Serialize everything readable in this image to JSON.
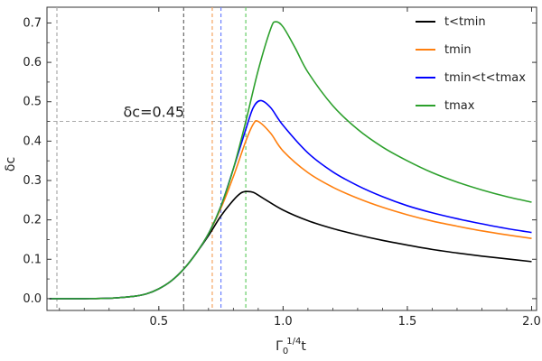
{
  "chart_data": {
    "type": "line",
    "title": "",
    "xlabel_main": "Γ",
    "xlabel_sub": "0",
    "xlabel_sup": "1/4",
    "xlabel_tail": "t",
    "ylabel": "δc",
    "xlim": [
      0.05,
      2.02
    ],
    "ylim": [
      -0.03,
      0.74
    ],
    "x_ticks": [
      0.5,
      1.0,
      1.5,
      2.0
    ],
    "x_tick_labels": [
      "0.5",
      "1.0",
      "1.5",
      "2.0"
    ],
    "y_ticks": [
      0.0,
      0.1,
      0.2,
      0.3,
      0.4,
      0.5,
      0.6,
      0.7
    ],
    "y_tick_labels": [
      "0.0",
      "0.1",
      "0.2",
      "0.3",
      "0.4",
      "0.5",
      "0.6",
      "0.7"
    ],
    "grid": false,
    "legend_position": "top-right",
    "annotation": {
      "text": "δc=0.45",
      "x": 0.48,
      "y": 0.45
    },
    "threshold_line": {
      "y": 0.45,
      "color": "#aaaaaa"
    },
    "vertical_lines": [
      {
        "x": 0.09,
        "color": "#aaaaaa"
      },
      {
        "x": 0.6,
        "color": "#666666"
      },
      {
        "x": 0.715,
        "color": "#f4a460"
      },
      {
        "x": 0.75,
        "color": "#6b7fff"
      },
      {
        "x": 0.85,
        "color": "#66cc66"
      }
    ],
    "series": [
      {
        "name": "t<tmin",
        "color": "#000000",
        "x": [
          0.06,
          0.2,
          0.3,
          0.4,
          0.45,
          0.5,
          0.55,
          0.6,
          0.65,
          0.7,
          0.75,
          0.8,
          0.83,
          0.85,
          0.88,
          0.92,
          1.0,
          1.1,
          1.2,
          1.3,
          1.4,
          1.5,
          1.6,
          1.7,
          1.8,
          1.9,
          2.0
        ],
        "y": [
          0.0,
          0.0,
          0.001,
          0.006,
          0.012,
          0.025,
          0.045,
          0.075,
          0.115,
          0.16,
          0.21,
          0.25,
          0.268,
          0.272,
          0.27,
          0.255,
          0.225,
          0.198,
          0.178,
          0.162,
          0.148,
          0.136,
          0.125,
          0.116,
          0.108,
          0.101,
          0.094
        ]
      },
      {
        "name": "tmin",
        "color": "#ff7f0e",
        "x": [
          0.06,
          0.2,
          0.3,
          0.4,
          0.45,
          0.5,
          0.55,
          0.6,
          0.65,
          0.7,
          0.75,
          0.8,
          0.85,
          0.88,
          0.9,
          0.95,
          1.0,
          1.1,
          1.2,
          1.3,
          1.4,
          1.5,
          1.6,
          1.7,
          1.8,
          1.9,
          2.0
        ],
        "y": [
          0.0,
          0.0,
          0.001,
          0.006,
          0.012,
          0.025,
          0.045,
          0.075,
          0.115,
          0.165,
          0.23,
          0.31,
          0.4,
          0.443,
          0.45,
          0.42,
          0.375,
          0.32,
          0.283,
          0.255,
          0.232,
          0.213,
          0.197,
          0.184,
          0.172,
          0.162,
          0.153
        ]
      },
      {
        "name": "tmin<t<tmax",
        "color": "#0000ff",
        "x": [
          0.06,
          0.2,
          0.3,
          0.4,
          0.45,
          0.5,
          0.55,
          0.6,
          0.65,
          0.7,
          0.75,
          0.8,
          0.85,
          0.88,
          0.91,
          0.95,
          1.0,
          1.1,
          1.2,
          1.3,
          1.4,
          1.5,
          1.6,
          1.7,
          1.8,
          1.9,
          2.0
        ],
        "y": [
          0.0,
          0.0,
          0.001,
          0.006,
          0.012,
          0.025,
          0.045,
          0.075,
          0.115,
          0.165,
          0.235,
          0.33,
          0.43,
          0.485,
          0.503,
          0.485,
          0.44,
          0.37,
          0.322,
          0.287,
          0.259,
          0.236,
          0.218,
          0.203,
          0.19,
          0.178,
          0.168
        ]
      },
      {
        "name": "tmax",
        "color": "#2ca02c",
        "x": [
          0.06,
          0.2,
          0.3,
          0.4,
          0.45,
          0.5,
          0.55,
          0.6,
          0.65,
          0.7,
          0.75,
          0.8,
          0.85,
          0.9,
          0.95,
          0.97,
          1.0,
          1.05,
          1.1,
          1.2,
          1.3,
          1.4,
          1.5,
          1.6,
          1.7,
          1.8,
          1.9,
          2.0
        ],
        "y": [
          0.0,
          0.0,
          0.001,
          0.006,
          0.012,
          0.025,
          0.045,
          0.075,
          0.115,
          0.165,
          0.235,
          0.33,
          0.45,
          0.58,
          0.685,
          0.703,
          0.69,
          0.635,
          0.575,
          0.49,
          0.43,
          0.385,
          0.35,
          0.32,
          0.296,
          0.276,
          0.259,
          0.245
        ]
      }
    ]
  }
}
